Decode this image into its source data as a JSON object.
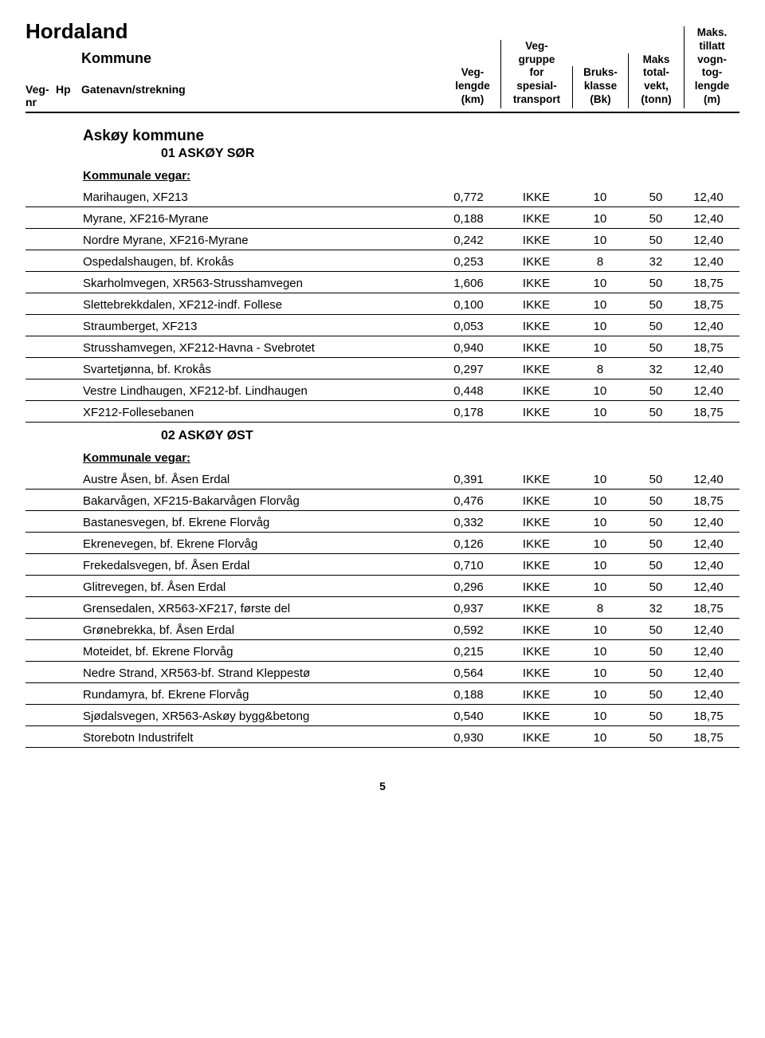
{
  "region": "Hordaland",
  "header": {
    "kommune": "Kommune",
    "vegnr": "Veg-\nnr",
    "hp": "Hp",
    "gate": "Gatenavn/strekning",
    "c1": "Veg-\nlengde\n(km)",
    "c2": "Veg-\ngruppe\nfor\nspesial-\ntransport",
    "c3": "Bruks-\nklasse\n(Bk)",
    "c4": "Maks\ntotal-\nvekt,\n(tonn)",
    "c5": "Maks.\ntillatt\nvogn-\ntog-\nlengde\n(m)"
  },
  "section": "Askøy kommune",
  "sub1": "01  ASKØY SØR",
  "group1": "Kommunale vegar:",
  "rows1": [
    {
      "n": "Marihaugen, XF213",
      "v": [
        "0,772",
        "IKKE",
        "10",
        "50",
        "12,40"
      ]
    },
    {
      "n": "Myrane, XF216-Myrane",
      "v": [
        "0,188",
        "IKKE",
        "10",
        "50",
        "12,40"
      ]
    },
    {
      "n": "Nordre Myrane, XF216-Myrane",
      "v": [
        "0,242",
        "IKKE",
        "10",
        "50",
        "12,40"
      ]
    },
    {
      "n": "Ospedalshaugen, bf. Krokås",
      "v": [
        "0,253",
        "IKKE",
        "8",
        "32",
        "12,40"
      ]
    },
    {
      "n": "Skarholmvegen, XR563-Strusshamvegen",
      "v": [
        "1,606",
        "IKKE",
        "10",
        "50",
        "18,75"
      ]
    },
    {
      "n": "Slettebrekkdalen, XF212-indf. Follese",
      "v": [
        "0,100",
        "IKKE",
        "10",
        "50",
        "18,75"
      ]
    },
    {
      "n": "Straumberget, XF213",
      "v": [
        "0,053",
        "IKKE",
        "10",
        "50",
        "12,40"
      ]
    },
    {
      "n": "Strusshamvegen, XF212-Havna - Svebrotet",
      "v": [
        "0,940",
        "IKKE",
        "10",
        "50",
        "18,75"
      ]
    },
    {
      "n": "Svartetjønna, bf. Krokås",
      "v": [
        "0,297",
        "IKKE",
        "8",
        "32",
        "12,40"
      ]
    },
    {
      "n": "Vestre Lindhaugen, XF212-bf. Lindhaugen",
      "v": [
        "0,448",
        "IKKE",
        "10",
        "50",
        "12,40"
      ]
    },
    {
      "n": "XF212-Follesebanen",
      "v": [
        "0,178",
        "IKKE",
        "10",
        "50",
        "18,75"
      ]
    }
  ],
  "sub2": "02  ASKØY ØST",
  "group2": "Kommunale vegar:",
  "rows2": [
    {
      "n": "Austre Åsen, bf. Åsen Erdal",
      "v": [
        "0,391",
        "IKKE",
        "10",
        "50",
        "12,40"
      ]
    },
    {
      "n": "Bakarvågen, XF215-Bakarvågen Florvåg",
      "v": [
        "0,476",
        "IKKE",
        "10",
        "50",
        "18,75"
      ]
    },
    {
      "n": "Bastanesvegen, bf. Ekrene Florvåg",
      "v": [
        "0,332",
        "IKKE",
        "10",
        "50",
        "12,40"
      ]
    },
    {
      "n": "Ekrenevegen, bf. Ekrene Florvåg",
      "v": [
        "0,126",
        "IKKE",
        "10",
        "50",
        "12,40"
      ]
    },
    {
      "n": "Frekedalsvegen, bf. Åsen Erdal",
      "v": [
        "0,710",
        "IKKE",
        "10",
        "50",
        "12,40"
      ]
    },
    {
      "n": "Glitrevegen, bf. Åsen Erdal",
      "v": [
        "0,296",
        "IKKE",
        "10",
        "50",
        "12,40"
      ]
    },
    {
      "n": "Grensedalen, XR563-XF217, første del",
      "v": [
        "0,937",
        "IKKE",
        "8",
        "32",
        "18,75"
      ]
    },
    {
      "n": "Grønebrekka, bf. Åsen Erdal",
      "v": [
        "0,592",
        "IKKE",
        "10",
        "50",
        "12,40"
      ]
    },
    {
      "n": "Moteidet, bf. Ekrene Florvåg",
      "v": [
        "0,215",
        "IKKE",
        "10",
        "50",
        "12,40"
      ]
    },
    {
      "n": "Nedre Strand, XR563-bf. Strand Kleppestø",
      "v": [
        "0,564",
        "IKKE",
        "10",
        "50",
        "12,40"
      ]
    },
    {
      "n": "Rundamyra, bf. Ekrene Florvåg",
      "v": [
        "0,188",
        "IKKE",
        "10",
        "50",
        "12,40"
      ]
    },
    {
      "n": "Sjødalsvegen, XR563-Askøy bygg&betong",
      "v": [
        "0,540",
        "IKKE",
        "10",
        "50",
        "18,75"
      ]
    },
    {
      "n": "Storebotn Industrifelt",
      "v": [
        "0,930",
        "IKKE",
        "10",
        "50",
        "18,75"
      ]
    }
  ],
  "page": "5"
}
